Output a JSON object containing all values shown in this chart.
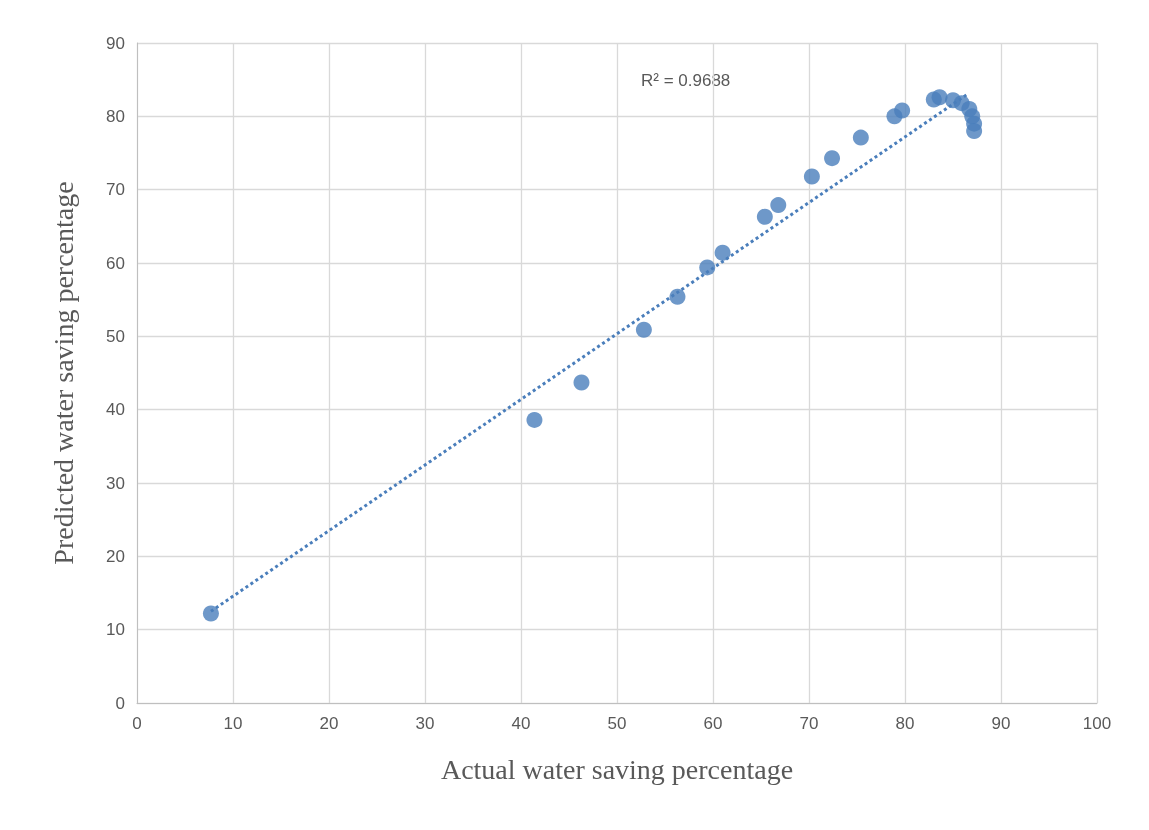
{
  "chart_data": {
    "type": "scatter",
    "xlabel": "Actual water saving percentage",
    "ylabel": "Predicted water saving percentage",
    "xlim": [
      0,
      100
    ],
    "xticks": [
      0,
      10,
      20,
      30,
      40,
      50,
      60,
      70,
      80,
      90,
      100
    ],
    "ylim": [
      0,
      90
    ],
    "yticks": [
      0,
      10,
      20,
      30,
      40,
      50,
      60,
      70,
      80,
      90
    ],
    "grid": true,
    "series": [
      {
        "marker": "circle",
        "color": "#4a7ebb",
        "x": [
          7.7,
          41.4,
          46.3,
          52.8,
          56.3,
          59.4,
          61.0,
          65.4,
          66.8,
          70.3,
          72.4,
          75.4,
          78.9,
          79.7,
          83.0,
          83.6,
          85.0,
          85.9,
          86.7,
          87.0,
          87.2,
          87.2
        ],
        "values": [
          12.2,
          38.6,
          43.7,
          50.9,
          55.4,
          59.4,
          61.4,
          66.3,
          67.9,
          71.8,
          74.3,
          77.1,
          80.0,
          80.8,
          82.3,
          82.6,
          82.2,
          81.8,
          81.0,
          80.0,
          79.0,
          78.0
        ]
      },
      {
        "type": "line",
        "color": "#4a7ebb",
        "line_style": "dotted",
        "x": [
          7.7,
          86.6
        ],
        "values": [
          12.5,
          83.1
        ]
      }
    ],
    "annotations": [
      "R² = 0.9688"
    ]
  }
}
